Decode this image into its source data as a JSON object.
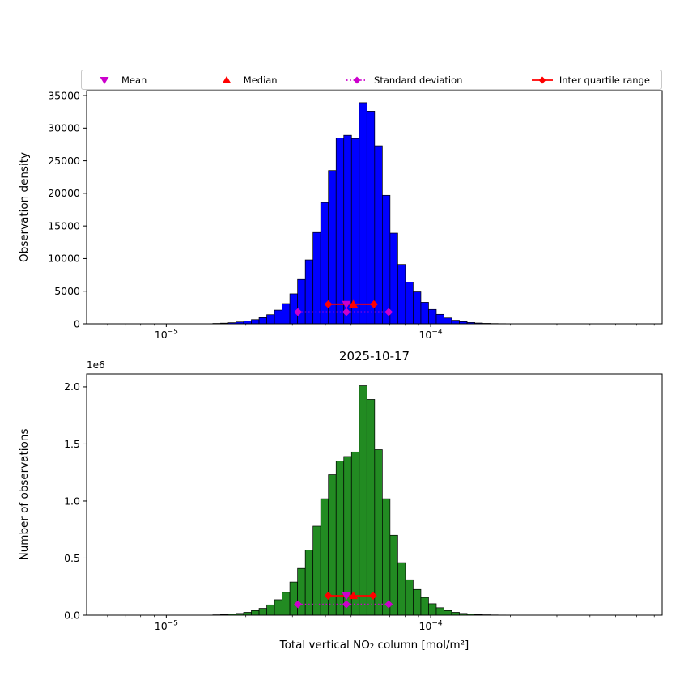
{
  "figure": {
    "title": "2025-10-17",
    "background": "#ffffff"
  },
  "colors": {
    "mean": "#cc00cc",
    "median": "#ff0000",
    "std": "#cc00cc",
    "iqr": "#ff0000",
    "top_bars": "#0000ff",
    "bottom_bars": "#228b22",
    "bar_edge": "#000000"
  },
  "legend": {
    "items": [
      {
        "label": "Mean",
        "marker": "triangle-down",
        "color": "#cc00cc"
      },
      {
        "label": "Median",
        "marker": "triangle-up",
        "color": "#ff0000"
      },
      {
        "label": "Standard deviation",
        "marker": "diamond-dotted-line",
        "color": "#cc00cc"
      },
      {
        "label": "Inter quartile range",
        "marker": "diamond-solid-line",
        "color": "#ff0000"
      }
    ]
  },
  "chart_data": [
    {
      "type": "bar",
      "id": "observation-density-histogram",
      "title": "",
      "xlabel": "",
      "ylabel": "Observation density",
      "xscale": "log",
      "xlim": [
        5e-06,
        0.00075
      ],
      "ylim": [
        0,
        35750
      ],
      "yticks": [
        0,
        5000,
        10000,
        15000,
        20000,
        25000,
        30000,
        35000
      ],
      "ytick_labels": [
        "0",
        "5000",
        "10000",
        "15000",
        "20000",
        "25000",
        "30000",
        "35000"
      ],
      "xticks": [
        {
          "value": 1e-05,
          "base": "10",
          "exponent": "−5"
        },
        {
          "value": 0.0001,
          "base": "10",
          "exponent": "−4"
        }
      ],
      "bar_color": "#0000ff",
      "bin_edges": [
        1.5e-05,
        1.604e-05,
        1.715e-05,
        1.834e-05,
        1.962e-05,
        2.098e-05,
        2.244e-05,
        2.399e-05,
        2.566e-05,
        2.744e-05,
        2.934e-05,
        3.138e-05,
        3.356e-05,
        3.589e-05,
        3.838e-05,
        4.104e-05,
        4.389e-05,
        4.693e-05,
        5.019e-05,
        5.367e-05,
        5.74e-05,
        6.138e-05,
        6.564e-05,
        7.019e-05,
        7.506e-05,
        8.027e-05,
        8.584e-05,
        9.18e-05,
        9.817e-05,
        0.00010498,
        0.00011226,
        0.00012005,
        0.00012838,
        0.00013729,
        0.00014681,
        0.000157,
        0.00016789,
        0.00017954,
        0.000192,
        0.00020532,
        0.00021956
      ],
      "values": [
        60,
        100,
        170,
        280,
        430,
        650,
        950,
        1400,
        2100,
        3100,
        4600,
        6800,
        9800,
        14000,
        18600,
        23500,
        28500,
        28900,
        28400,
        33900,
        32600,
        27300,
        19700,
        13900,
        9100,
        6400,
        4900,
        3300,
        2200,
        1450,
        900,
        550,
        330,
        200,
        120,
        70,
        40,
        25,
        12,
        6
      ],
      "stats": {
        "mean": 4.8e-05,
        "median": 5.1e-05,
        "std_range": [
          3.15e-05,
          6.94e-05
        ],
        "iqr": [
          4.1e-05,
          6.1e-05
        ],
        "marker_y": {
          "iqr": 3000,
          "std": 1800
        }
      }
    },
    {
      "type": "bar",
      "id": "number-of-observations-histogram",
      "title": "2025-10-17",
      "xlabel": "Total vertical NO₂ column [mol/m²]",
      "ylabel": "Number of observations",
      "offset_text": "1e6",
      "xscale": "log",
      "xlim": [
        5e-06,
        0.00075
      ],
      "ylim": [
        0,
        2113000
      ],
      "yticks": [
        0,
        500000,
        1000000,
        1500000,
        2000000
      ],
      "ytick_labels": [
        "0.0",
        "0.5",
        "1.0",
        "1.5",
        "2.0"
      ],
      "xticks": [
        {
          "value": 1e-05,
          "base": "10",
          "exponent": "−5"
        },
        {
          "value": 0.0001,
          "base": "10",
          "exponent": "−4"
        }
      ],
      "bar_color": "#228b22",
      "bin_edges": [
        1.5e-05,
        1.604e-05,
        1.715e-05,
        1.834e-05,
        1.962e-05,
        2.098e-05,
        2.244e-05,
        2.399e-05,
        2.566e-05,
        2.744e-05,
        2.934e-05,
        3.138e-05,
        3.356e-05,
        3.589e-05,
        3.838e-05,
        4.104e-05,
        4.389e-05,
        4.693e-05,
        5.019e-05,
        5.367e-05,
        5.74e-05,
        6.138e-05,
        6.564e-05,
        7.019e-05,
        7.506e-05,
        8.027e-05,
        8.584e-05,
        9.18e-05,
        9.817e-05,
        0.00010498,
        0.00011226,
        0.00012005,
        0.00012838,
        0.00013729,
        0.00014681,
        0.000157,
        0.00016789,
        0.00017954,
        0.000192,
        0.00020532,
        0.00021956
      ],
      "values": [
        3000,
        5000,
        9000,
        15000,
        25000,
        40000,
        60000,
        90000,
        135000,
        200000,
        290000,
        410000,
        570000,
        780000,
        1020000,
        1230000,
        1350000,
        1390000,
        1430000,
        2010000,
        1890000,
        1450000,
        1020000,
        700000,
        460000,
        310000,
        225000,
        155000,
        100000,
        65000,
        40000,
        25000,
        15000,
        9000,
        5500,
        3200,
        2000,
        1200,
        700,
        400
      ],
      "stats": {
        "mean": 4.8e-05,
        "median": 5.1e-05,
        "std_range": [
          3.15e-05,
          6.94e-05
        ],
        "iqr": [
          4.1e-05,
          6.05e-05
        ],
        "marker_y": {
          "iqr": 170000,
          "std": 95000
        }
      }
    }
  ]
}
